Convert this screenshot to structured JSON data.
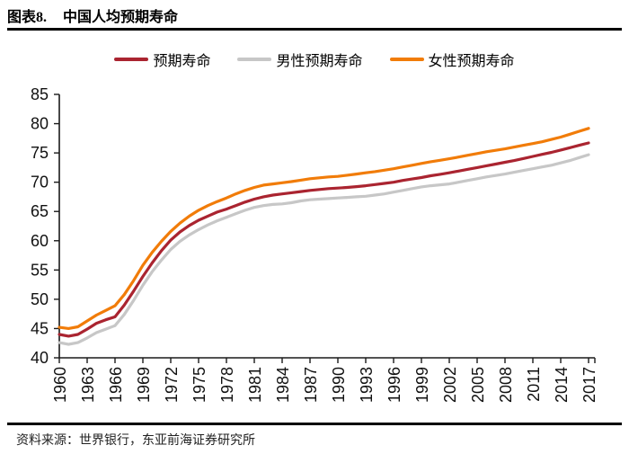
{
  "header": {
    "figure_label": "图表8.",
    "title": "中国人均预期寿命"
  },
  "legend": {
    "items": [
      {
        "label": "预期寿命",
        "color": "#AA2430"
      },
      {
        "label": "男性预期寿命",
        "color": "#C7C7C7"
      },
      {
        "label": "女性预期寿命",
        "color": "#F17C09"
      }
    ]
  },
  "footer": {
    "source": "资料来源：世界银行，东亚前海证券研究所"
  },
  "chart_data": {
    "type": "line",
    "title": "中国人均预期寿命",
    "xlabel": "",
    "ylabel": "",
    "ylim": [
      40,
      85
    ],
    "ytick_step": 5,
    "grid": false,
    "legend_position": "top-center",
    "axis_color": "#1a1a1a",
    "x": [
      1960,
      1961,
      1962,
      1963,
      1964,
      1965,
      1966,
      1967,
      1968,
      1969,
      1970,
      1971,
      1972,
      1973,
      1974,
      1975,
      1976,
      1977,
      1978,
      1979,
      1980,
      1981,
      1982,
      1983,
      1984,
      1985,
      1986,
      1987,
      1988,
      1989,
      1990,
      1991,
      1992,
      1993,
      1994,
      1995,
      1996,
      1997,
      1998,
      1999,
      2000,
      2001,
      2002,
      2003,
      2004,
      2005,
      2006,
      2007,
      2008,
      2009,
      2010,
      2011,
      2012,
      2013,
      2014,
      2015,
      2016,
      2017
    ],
    "xticks": [
      1960,
      1963,
      1966,
      1969,
      1972,
      1975,
      1978,
      1981,
      1984,
      1987,
      1990,
      1993,
      1996,
      1999,
      2002,
      2005,
      2008,
      2011,
      2014,
      2017
    ],
    "draw_order": [
      1,
      0,
      2
    ],
    "series": [
      {
        "name": "预期寿命",
        "color": "#AA2430",
        "values": [
          44.0,
          43.7,
          44.0,
          44.9,
          45.9,
          46.5,
          47.0,
          49.0,
          51.4,
          53.9,
          56.2,
          58.3,
          60.1,
          61.5,
          62.6,
          63.5,
          64.2,
          64.9,
          65.4,
          66.0,
          66.6,
          67.1,
          67.5,
          67.8,
          68.0,
          68.2,
          68.4,
          68.6,
          68.75,
          68.9,
          69.0,
          69.1,
          69.25,
          69.4,
          69.6,
          69.8,
          70.0,
          70.3,
          70.55,
          70.8,
          71.1,
          71.35,
          71.6,
          71.9,
          72.2,
          72.5,
          72.8,
          73.1,
          73.4,
          73.7,
          74.05,
          74.4,
          74.75,
          75.1,
          75.5,
          75.9,
          76.3,
          76.7
        ]
      },
      {
        "name": "男性预期寿命",
        "color": "#C7C7C7",
        "values": [
          42.6,
          42.3,
          42.6,
          43.4,
          44.3,
          44.9,
          45.5,
          47.4,
          49.8,
          52.4,
          54.7,
          56.7,
          58.5,
          59.9,
          61.0,
          61.9,
          62.7,
          63.4,
          64.0,
          64.6,
          65.2,
          65.7,
          66.0,
          66.2,
          66.3,
          66.5,
          66.8,
          67.0,
          67.1,
          67.2,
          67.3,
          67.4,
          67.5,
          67.6,
          67.8,
          68.0,
          68.3,
          68.6,
          68.9,
          69.2,
          69.4,
          69.55,
          69.7,
          70.0,
          70.3,
          70.6,
          70.9,
          71.15,
          71.4,
          71.7,
          72.0,
          72.3,
          72.6,
          72.9,
          73.3,
          73.7,
          74.2,
          74.7
        ]
      },
      {
        "name": "女性预期寿命",
        "color": "#F17C09",
        "values": [
          45.2,
          45.0,
          45.3,
          46.3,
          47.3,
          48.1,
          48.9,
          50.8,
          53.2,
          55.8,
          58.0,
          59.9,
          61.6,
          63.0,
          64.2,
          65.2,
          66.0,
          66.7,
          67.3,
          68.0,
          68.6,
          69.1,
          69.5,
          69.7,
          69.9,
          70.1,
          70.35,
          70.6,
          70.75,
          70.9,
          71.0,
          71.2,
          71.4,
          71.6,
          71.8,
          72.05,
          72.3,
          72.6,
          72.9,
          73.2,
          73.5,
          73.75,
          74.0,
          74.3,
          74.6,
          74.9,
          75.2,
          75.45,
          75.7,
          76.0,
          76.3,
          76.6,
          76.9,
          77.3,
          77.7,
          78.2,
          78.7,
          79.2
        ]
      }
    ]
  }
}
